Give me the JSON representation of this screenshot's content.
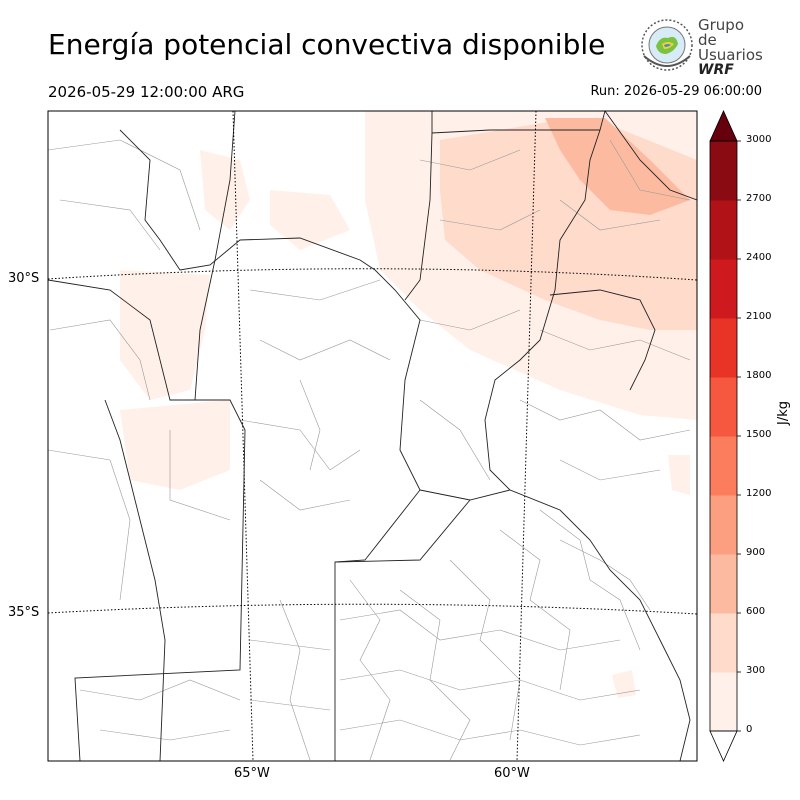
{
  "title": "Energía potencial convectiva disponible",
  "valid_time": "2026-05-29 12:00:00 ARG",
  "run_time": "Run: 2026-05-29 06:00:00",
  "logo": {
    "line1": "Grupo de",
    "line2": "Usuarios",
    "line3": "WRF"
  },
  "map": {
    "lat_labels": [
      "30°S",
      "35°S"
    ],
    "lon_labels": [
      "65°W",
      "60°W"
    ]
  },
  "colorbar": {
    "unit": "J/kg",
    "ticks": [
      "0",
      "300",
      "600",
      "900",
      "1200",
      "1500",
      "1800",
      "2100",
      "2400",
      "2700",
      "3000"
    ],
    "colors": [
      "#fff0e9",
      "#fedbcb",
      "#fcbba1",
      "#fc9e80",
      "#fb7d5d",
      "#f5573f",
      "#e83327",
      "#ce1a1e",
      "#b01217",
      "#8b0b13",
      "#67000d"
    ]
  },
  "colors": {
    "line_country": "#222222",
    "line_dept": "#999999",
    "grid": "#000000"
  }
}
